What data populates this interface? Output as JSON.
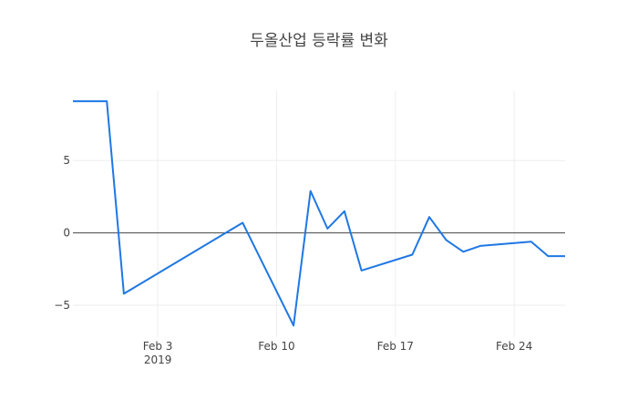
{
  "chart_data": {
    "type": "line",
    "title": "두올산업 등락률 변화",
    "xlabel": "",
    "ylabel": "",
    "x": [
      "2019-01-29",
      "2019-01-30",
      "2019-01-31",
      "2019-02-01",
      "2019-02-08",
      "2019-02-11",
      "2019-02-12",
      "2019-02-13",
      "2019-02-14",
      "2019-02-15",
      "2019-02-18",
      "2019-02-19",
      "2019-02-20",
      "2019-02-21",
      "2019-02-22",
      "2019-02-25",
      "2019-02-26",
      "2019-02-27"
    ],
    "series": [
      {
        "values": [
          9.1,
          9.1,
          9.1,
          -4.2,
          0.7,
          -6.4,
          2.9,
          0.3,
          1.5,
          -2.6,
          -1.5,
          1.1,
          -0.5,
          -1.3,
          -0.9,
          -0.6,
          -1.6,
          -1.6
        ],
        "color": "#1f77e4"
      }
    ],
    "xlim": [
      "2019-01-29",
      "2019-02-27"
    ],
    "ylim": [
      -7.2,
      9.8
    ],
    "y_ticks": [
      -5,
      0,
      5
    ],
    "x_ticks": [
      {
        "date": "2019-02-03",
        "label": "Feb 3",
        "sublabel": "2019"
      },
      {
        "date": "2019-02-10",
        "label": "Feb 10",
        "sublabel": ""
      },
      {
        "date": "2019-02-17",
        "label": "Feb 17",
        "sublabel": ""
      },
      {
        "date": "2019-02-24",
        "label": "Feb 24",
        "sublabel": ""
      }
    ],
    "grid": true,
    "legend": "none"
  }
}
